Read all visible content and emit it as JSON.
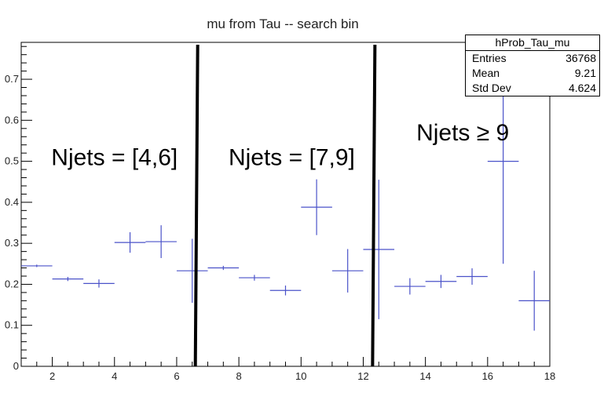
{
  "chart_data": {
    "type": "scatter",
    "title": "mu from Tau -- search bin",
    "xlim": [
      1,
      18
    ],
    "ylim": [
      0,
      0.79
    ],
    "x_ticks": [
      2,
      4,
      6,
      8,
      10,
      12,
      14,
      16,
      18
    ],
    "y_ticks": [
      0,
      0.1,
      0.2,
      0.3,
      0.4,
      0.5,
      0.6,
      0.7
    ],
    "y_tick_labels": [
      "0",
      "0.1",
      "0.2",
      "0.3",
      "0.4",
      "0.5",
      "0.6",
      "0.7"
    ],
    "grid": false,
    "marker_color": "#4a52c9",
    "series": [
      {
        "x": [
          1.5,
          2.5,
          3.5,
          4.5,
          5.5,
          6.5,
          7.5,
          8.5,
          9.5,
          10.5,
          11.5,
          12.5,
          13.5,
          14.5,
          15.5,
          16.5,
          17.5
        ],
        "y": [
          0.245,
          0.213,
          0.202,
          0.302,
          0.304,
          0.233,
          0.24,
          0.216,
          0.185,
          0.388,
          0.233,
          0.285,
          0.195,
          0.207,
          0.219,
          0.5,
          0.16
        ],
        "yerr": [
          0.003,
          0.005,
          0.01,
          0.025,
          0.04,
          0.078,
          0.005,
          0.007,
          0.012,
          0.068,
          0.053,
          0.17,
          0.02,
          0.016,
          0.02,
          0.25,
          0.073
        ]
      }
    ],
    "dividers_x": [
      6.6,
      12.3
    ],
    "annotations": [
      {
        "text": "Njets = [4,6]",
        "x": 4.0,
        "y": 0.51
      },
      {
        "text": "Njets = [7,9]",
        "x": 9.7,
        "y": 0.51
      },
      {
        "text": "Njets ≥ 9",
        "x": 15.2,
        "y": 0.57
      }
    ]
  },
  "stats_box": {
    "name": "hProb_Tau_mu",
    "rows": [
      {
        "label": "Entries",
        "value": "36768"
      },
      {
        "label": "Mean",
        "value": "9.21"
      },
      {
        "label": "Std Dev",
        "value": "4.624"
      }
    ]
  }
}
